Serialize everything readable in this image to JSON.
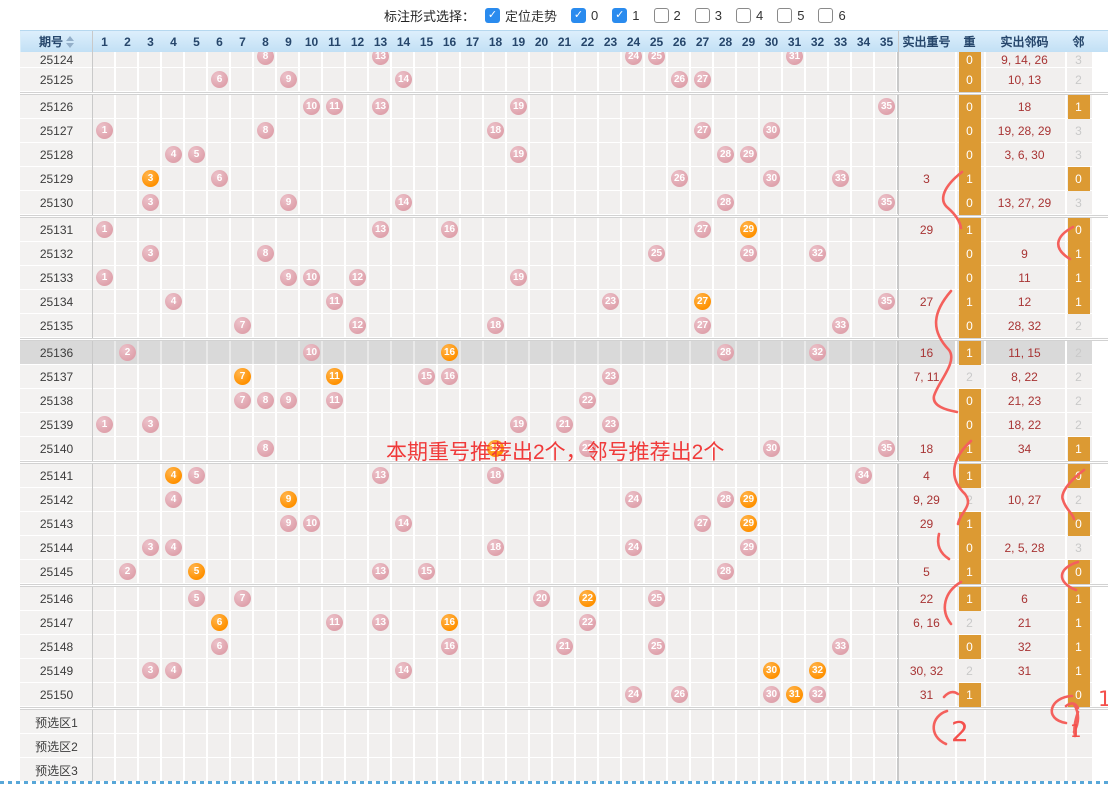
{
  "toolbar": {
    "label": "标注形式选择：",
    "options": [
      {
        "label": "定位走势",
        "checked": true
      },
      {
        "label": "0",
        "checked": true
      },
      {
        "label": "1",
        "checked": true
      },
      {
        "label": "2",
        "checked": false
      },
      {
        "label": "3",
        "checked": false
      },
      {
        "label": "4",
        "checked": false
      },
      {
        "label": "5",
        "checked": false
      },
      {
        "label": "6",
        "checked": false
      }
    ]
  },
  "header": {
    "period_label": "期号",
    "numbers": [
      1,
      2,
      3,
      4,
      5,
      6,
      7,
      8,
      9,
      10,
      11,
      12,
      13,
      14,
      15,
      16,
      17,
      18,
      19,
      20,
      21,
      22,
      23,
      24,
      25,
      26,
      27,
      28,
      29,
      30,
      31,
      32,
      33,
      34,
      35
    ],
    "repeat_nums_label": "实出重号",
    "repeat_label": "重",
    "neighbor_nums_label": "实出邻码",
    "neighbor_label": "邻"
  },
  "rows": [
    {
      "period": "25124",
      "clipped": true,
      "balls": [
        {
          "n": 8
        },
        {
          "n": 13
        },
        {
          "n": 24
        },
        {
          "n": 25
        },
        {
          "n": 31
        }
      ],
      "repeat": "",
      "repeat_count": "0",
      "repeat_badge": true,
      "neighbor": "9, 14, 26",
      "neighbor_count": "3",
      "neighbor_badge": false
    },
    {
      "period": "25125",
      "balls": [
        {
          "n": 6
        },
        {
          "n": 9
        },
        {
          "n": 14
        },
        {
          "n": 26
        },
        {
          "n": 27
        }
      ],
      "repeat": "",
      "repeat_count": "0",
      "repeat_badge": true,
      "neighbor": "10, 13",
      "neighbor_count": "2",
      "neighbor_badge": false,
      "gap_after": true
    },
    {
      "period": "25126",
      "balls": [
        {
          "n": 10
        },
        {
          "n": 11
        },
        {
          "n": 13
        },
        {
          "n": 19
        },
        {
          "n": 35
        }
      ],
      "repeat": "",
      "repeat_count": "0",
      "repeat_badge": true,
      "neighbor": "18",
      "neighbor_count": "1",
      "neighbor_badge": true
    },
    {
      "period": "25127",
      "balls": [
        {
          "n": 1
        },
        {
          "n": 8
        },
        {
          "n": 18
        },
        {
          "n": 27
        },
        {
          "n": 30
        }
      ],
      "repeat": "",
      "repeat_count": "0",
      "repeat_badge": true,
      "neighbor": "19, 28, 29",
      "neighbor_count": "3",
      "neighbor_badge": false
    },
    {
      "period": "25128",
      "balls": [
        {
          "n": 4
        },
        {
          "n": 5
        },
        {
          "n": 19
        },
        {
          "n": 28
        },
        {
          "n": 29
        }
      ],
      "repeat": "",
      "repeat_count": "0",
      "repeat_badge": true,
      "neighbor": "3, 6, 30",
      "neighbor_count": "3",
      "neighbor_badge": false
    },
    {
      "period": "25129",
      "balls": [
        {
          "n": 3,
          "hot": true
        },
        {
          "n": 6
        },
        {
          "n": 26
        },
        {
          "n": 30
        },
        {
          "n": 33
        }
      ],
      "repeat": "3",
      "repeat_count": "1",
      "repeat_badge": true,
      "neighbor": "",
      "neighbor_count": "0",
      "neighbor_badge": true
    },
    {
      "period": "25130",
      "balls": [
        {
          "n": 3
        },
        {
          "n": 9
        },
        {
          "n": 14
        },
        {
          "n": 28
        },
        {
          "n": 35
        }
      ],
      "repeat": "",
      "repeat_count": "0",
      "repeat_badge": true,
      "neighbor": "13, 27, 29",
      "neighbor_count": "3",
      "neighbor_badge": false,
      "gap_after": true
    },
    {
      "period": "25131",
      "balls": [
        {
          "n": 1
        },
        {
          "n": 13
        },
        {
          "n": 16
        },
        {
          "n": 27
        },
        {
          "n": 29,
          "hot": true
        }
      ],
      "repeat": "29",
      "repeat_count": "1",
      "repeat_badge": true,
      "neighbor": "",
      "neighbor_count": "0",
      "neighbor_badge": true
    },
    {
      "period": "25132",
      "balls": [
        {
          "n": 3
        },
        {
          "n": 8
        },
        {
          "n": 25
        },
        {
          "n": 29
        },
        {
          "n": 32
        }
      ],
      "repeat": "",
      "repeat_count": "0",
      "repeat_badge": true,
      "neighbor": "9",
      "neighbor_count": "1",
      "neighbor_badge": true
    },
    {
      "period": "25133",
      "balls": [
        {
          "n": 1
        },
        {
          "n": 9
        },
        {
          "n": 10
        },
        {
          "n": 12
        },
        {
          "n": 19
        }
      ],
      "repeat": "",
      "repeat_count": "0",
      "repeat_badge": true,
      "neighbor": "11",
      "neighbor_count": "1",
      "neighbor_badge": true
    },
    {
      "period": "25134",
      "balls": [
        {
          "n": 4
        },
        {
          "n": 11
        },
        {
          "n": 23
        },
        {
          "n": 27,
          "hot": true
        },
        {
          "n": 35
        }
      ],
      "repeat": "27",
      "repeat_count": "1",
      "repeat_badge": true,
      "neighbor": "12",
      "neighbor_count": "1",
      "neighbor_badge": true
    },
    {
      "period": "25135",
      "balls": [
        {
          "n": 7
        },
        {
          "n": 12
        },
        {
          "n": 18
        },
        {
          "n": 27
        },
        {
          "n": 33
        }
      ],
      "repeat": "",
      "repeat_count": "0",
      "repeat_badge": true,
      "neighbor": "28, 32",
      "neighbor_count": "2",
      "neighbor_badge": false,
      "gap_after": true
    },
    {
      "period": "25136",
      "highlight": true,
      "balls": [
        {
          "n": 2
        },
        {
          "n": 10
        },
        {
          "n": 16,
          "hot": true
        },
        {
          "n": 28
        },
        {
          "n": 32
        }
      ],
      "repeat": "16",
      "repeat_count": "1",
      "repeat_badge": true,
      "neighbor": "11, 15",
      "neighbor_count": "2",
      "neighbor_badge": false
    },
    {
      "period": "25137",
      "balls": [
        {
          "n": 7,
          "hot": true
        },
        {
          "n": 11,
          "hot": true
        },
        {
          "n": 15
        },
        {
          "n": 16
        },
        {
          "n": 23
        }
      ],
      "repeat": "7, 11",
      "repeat_count": "2",
      "repeat_badge": false,
      "neighbor": "8, 22",
      "neighbor_count": "2",
      "neighbor_badge": false
    },
    {
      "period": "25138",
      "balls": [
        {
          "n": 7
        },
        {
          "n": 8
        },
        {
          "n": 9
        },
        {
          "n": 11
        },
        {
          "n": 22
        }
      ],
      "repeat": "",
      "repeat_count": "0",
      "repeat_badge": true,
      "neighbor": "21, 23",
      "neighbor_count": "2",
      "neighbor_badge": false
    },
    {
      "period": "25139",
      "balls": [
        {
          "n": 1
        },
        {
          "n": 3
        },
        {
          "n": 19
        },
        {
          "n": 21
        },
        {
          "n": 23
        }
      ],
      "repeat": "",
      "repeat_count": "0",
      "repeat_badge": true,
      "neighbor": "18, 22",
      "neighbor_count": "2",
      "neighbor_badge": false
    },
    {
      "period": "25140",
      "balls": [
        {
          "n": 8
        },
        {
          "n": 18,
          "hot": true
        },
        {
          "n": 22
        },
        {
          "n": 30
        },
        {
          "n": 35
        }
      ],
      "repeat": "18",
      "repeat_count": "1",
      "repeat_badge": true,
      "neighbor": "34",
      "neighbor_count": "1",
      "neighbor_badge": true,
      "gap_after": true
    },
    {
      "period": "25141",
      "balls": [
        {
          "n": 4,
          "hot": true
        },
        {
          "n": 5
        },
        {
          "n": 13
        },
        {
          "n": 18
        },
        {
          "n": 34
        }
      ],
      "repeat": "4",
      "repeat_count": "1",
      "repeat_badge": true,
      "neighbor": "",
      "neighbor_count": "0",
      "neighbor_badge": true
    },
    {
      "period": "25142",
      "balls": [
        {
          "n": 4
        },
        {
          "n": 9,
          "hot": true
        },
        {
          "n": 24
        },
        {
          "n": 28
        },
        {
          "n": 29,
          "hot": true
        }
      ],
      "repeat": "9, 29",
      "repeat_count": "2",
      "repeat_badge": false,
      "neighbor": "10, 27",
      "neighbor_count": "2",
      "neighbor_badge": false
    },
    {
      "period": "25143",
      "balls": [
        {
          "n": 9
        },
        {
          "n": 10
        },
        {
          "n": 14
        },
        {
          "n": 27
        },
        {
          "n": 29,
          "hot": true
        }
      ],
      "repeat": "29",
      "repeat_count": "1",
      "repeat_badge": true,
      "neighbor": "",
      "neighbor_count": "0",
      "neighbor_badge": true
    },
    {
      "period": "25144",
      "balls": [
        {
          "n": 3
        },
        {
          "n": 4
        },
        {
          "n": 18
        },
        {
          "n": 24
        },
        {
          "n": 29
        }
      ],
      "repeat": "",
      "repeat_count": "0",
      "repeat_badge": true,
      "neighbor": "2, 5, 28",
      "neighbor_count": "3",
      "neighbor_badge": false
    },
    {
      "period": "25145",
      "balls": [
        {
          "n": 2
        },
        {
          "n": 5,
          "hot": true
        },
        {
          "n": 13
        },
        {
          "n": 15
        },
        {
          "n": 28
        }
      ],
      "repeat": "5",
      "repeat_count": "1",
      "repeat_badge": true,
      "neighbor": "",
      "neighbor_count": "0",
      "neighbor_badge": true,
      "gap_after": true
    },
    {
      "period": "25146",
      "balls": [
        {
          "n": 5
        },
        {
          "n": 7
        },
        {
          "n": 20
        },
        {
          "n": 22,
          "hot": true
        },
        {
          "n": 25
        }
      ],
      "repeat": "22",
      "repeat_count": "1",
      "repeat_badge": true,
      "neighbor": "6",
      "neighbor_count": "1",
      "neighbor_badge": true
    },
    {
      "period": "25147",
      "balls": [
        {
          "n": 6,
          "hot": true
        },
        {
          "n": 11
        },
        {
          "n": 13
        },
        {
          "n": 16,
          "hot": true
        },
        {
          "n": 22
        }
      ],
      "repeat": "6, 16",
      "repeat_count": "2",
      "repeat_badge": false,
      "neighbor": "21",
      "neighbor_count": "1",
      "neighbor_badge": true
    },
    {
      "period": "25148",
      "balls": [
        {
          "n": 6
        },
        {
          "n": 16
        },
        {
          "n": 21
        },
        {
          "n": 25
        },
        {
          "n": 33
        }
      ],
      "repeat": "",
      "repeat_count": "0",
      "repeat_badge": true,
      "neighbor": "32",
      "neighbor_count": "1",
      "neighbor_badge": true
    },
    {
      "period": "25149",
      "balls": [
        {
          "n": 3
        },
        {
          "n": 4
        },
        {
          "n": 14
        },
        {
          "n": 30,
          "hot": true
        },
        {
          "n": 32,
          "hot": true
        }
      ],
      "repeat": "30, 32",
      "repeat_count": "2",
      "repeat_badge": false,
      "neighbor": "31",
      "neighbor_count": "1",
      "neighbor_badge": true
    },
    {
      "period": "25150",
      "balls": [
        {
          "n": 24
        },
        {
          "n": 26
        },
        {
          "n": 30
        },
        {
          "n": 31,
          "hot": true
        },
        {
          "n": 32
        }
      ],
      "repeat": "31",
      "repeat_count": "1",
      "repeat_badge": true,
      "neighbor": "",
      "neighbor_count": "0",
      "neighbor_badge": true,
      "gap_after": true
    }
  ],
  "footer_rows": [
    "预选区1",
    "预选区2",
    "预选区3"
  ],
  "annotations": {
    "center_text": "本期重号推荐出2个，邻号推荐出2个",
    "handwritten_bottom_left": "2",
    "handwritten_bottom_right": "1",
    "handwritten_row_right": "1"
  },
  "colors": {
    "ball_pink": "#dfa2ac",
    "ball_orange": "#ff9100",
    "badge_orange": "#dc9a33",
    "value_red": "#a83434",
    "count_gray": "#c9c9c9",
    "header_blue_top": "#ddeffc",
    "header_blue_bottom": "#c2e0f5",
    "annotation_red": "#f4605c",
    "checkbox_blue": "#2a8bee",
    "highlight_gray": "#d9d9d9"
  }
}
